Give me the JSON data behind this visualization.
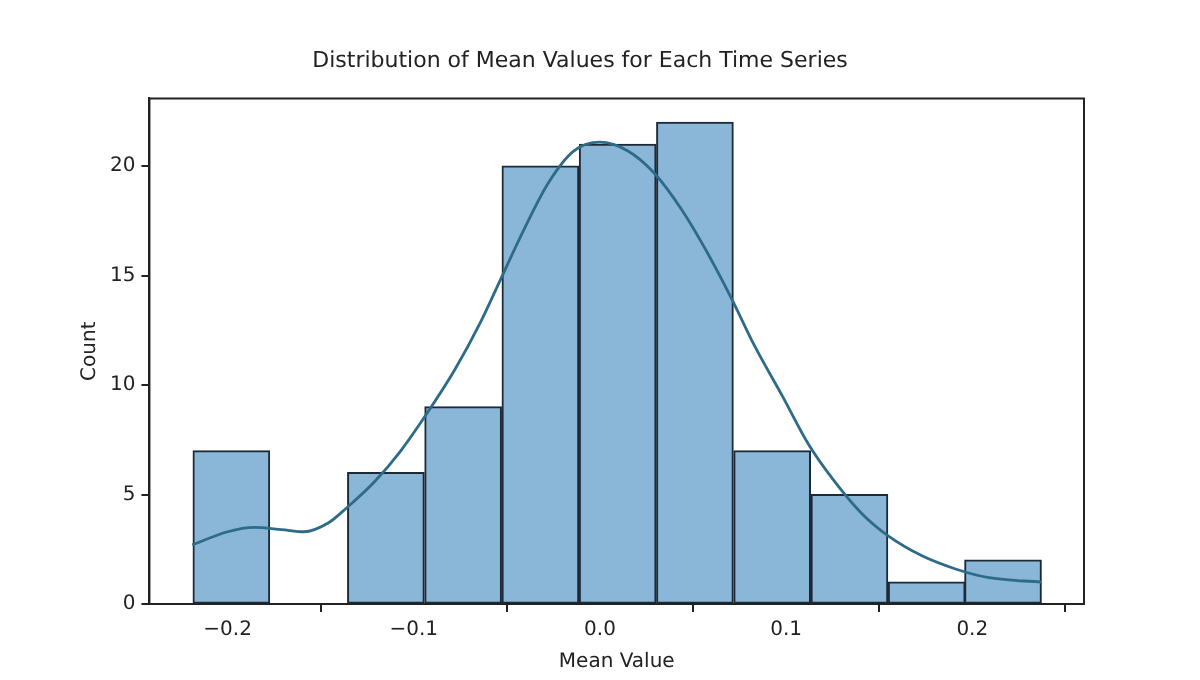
{
  "chart_data": {
    "type": "histogram",
    "title": "Distribution of Mean Values for Each Time Series",
    "xlabel": "Mean Value",
    "ylabel": "Count",
    "bins": [
      -0.219,
      -0.177,
      -0.136,
      -0.094,
      -0.053,
      -0.011,
      0.03,
      0.072,
      0.113,
      0.155,
      0.196,
      0.237
    ],
    "values": [
      7,
      0,
      6,
      9,
      20,
      21,
      22,
      7,
      5,
      1,
      2
    ],
    "color": "#8ab6d8",
    "series": [
      {
        "type": "line",
        "color": "#2d6b88",
        "x": [
          -0.219,
          -0.2,
          -0.186,
          -0.171,
          -0.159,
          -0.146,
          -0.136,
          -0.121,
          -0.107,
          -0.093,
          -0.078,
          -0.064,
          -0.053,
          -0.042,
          -0.028,
          -0.014,
          0,
          0.015,
          0.029,
          0.044,
          0.058,
          0.071,
          0.083,
          0.098,
          0.112,
          0.126,
          0.141,
          0.155,
          0.173,
          0.191,
          0.209,
          0.237
        ],
        "values": [
          2.7,
          3.3,
          3.5,
          3.4,
          3.3,
          3.7,
          4.4,
          5.6,
          7.0,
          8.7,
          10.7,
          12.9,
          14.9,
          16.9,
          19.2,
          20.7,
          21.1,
          20.7,
          19.7,
          18.0,
          16.0,
          13.9,
          11.8,
          9.5,
          7.3,
          5.6,
          4.1,
          3.1,
          2.2,
          1.6,
          1.2,
          1.0
        ]
      }
    ],
    "xlim": [
      -0.242,
      0.26
    ],
    "ylim": [
      0,
      23.1
    ],
    "xticks": [
      {
        "value": -0.2,
        "label": "−0.2"
      },
      {
        "value": -0.1,
        "label": "−0.1"
      },
      {
        "value": 0,
        "label": "0.0"
      },
      {
        "value": 0.1,
        "label": "0.1"
      },
      {
        "value": 0.2,
        "label": "0.2"
      }
    ],
    "yticks": [
      0,
      5,
      10,
      15,
      20
    ],
    "grid": false,
    "legend": false
  }
}
